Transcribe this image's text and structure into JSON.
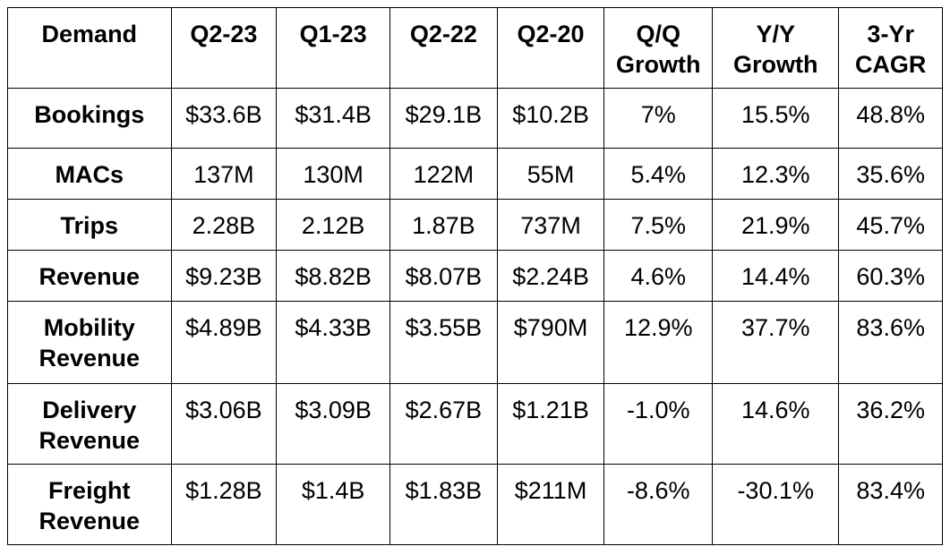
{
  "table": {
    "headers": [
      "Demand",
      "Q2-23",
      "Q1-23",
      "Q2-22",
      "Q2-20",
      "Q/Q Growth",
      "Y/Y Growth",
      "3-Yr CAGR"
    ],
    "rows": [
      [
        "Bookings",
        "$33.6B",
        "$31.4B",
        "$29.1B",
        "$10.2B",
        "7%",
        "15.5%",
        "48.8%"
      ],
      [
        "MACs",
        "137M",
        "130M",
        "122M",
        "55M",
        "5.4%",
        "12.3%",
        "35.6%"
      ],
      [
        "Trips",
        "2.28B",
        "2.12B",
        "1.87B",
        "737M",
        "7.5%",
        "21.9%",
        "45.7%"
      ],
      [
        "Revenue",
        "$9.23B",
        "$8.82B",
        "$8.07B",
        "$2.24B",
        "4.6%",
        "14.4%",
        "60.3%"
      ],
      [
        "Mobility Revenue",
        "$4.89B",
        "$4.33B",
        "$3.55B",
        "$790M",
        "12.9%",
        "37.7%",
        "83.6%"
      ],
      [
        "Delivery Revenue",
        "$3.06B",
        "$3.09B",
        "$2.67B",
        "$1.21B",
        "-1.0%",
        "14.6%",
        "36.2%"
      ],
      [
        "Freight Revenue",
        "$1.28B",
        "$1.4B",
        "$1.83B",
        "$211M",
        "-8.6%",
        "-30.1%",
        "83.4%"
      ]
    ]
  }
}
